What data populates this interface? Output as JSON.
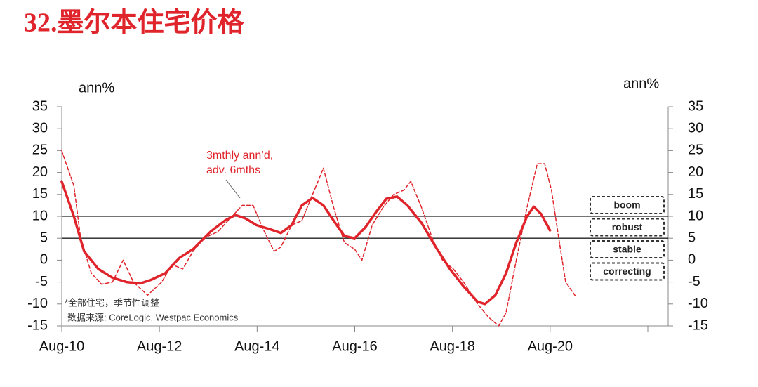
{
  "chart_data": {
    "type": "line",
    "title": "32.墨尔本住宅价格",
    "y_label": "ann%",
    "y2_label": "ann%",
    "annotation": [
      "3mthly ann’d,",
      "adv. 6mths"
    ],
    "notes": [
      "*全部住宅，季节性调整",
      "数据来源: CoreLogic, Westpac Economics"
    ],
    "regime_labels": [
      "boom",
      "robust",
      "stable",
      "correcting"
    ],
    "hlines": [
      10,
      5
    ],
    "xlim": [
      2010.583,
      2023.0
    ],
    "xticks": [
      {
        "value": 2010.583,
        "label": "Aug-10"
      },
      {
        "value": 2012.583,
        "label": "Aug-12"
      },
      {
        "value": 2014.583,
        "label": "Aug-14"
      },
      {
        "value": 2016.583,
        "label": "Aug-16"
      },
      {
        "value": 2018.583,
        "label": "Aug-18"
      },
      {
        "value": 2020.583,
        "label": "Aug-20"
      },
      {
        "value": 2022.583,
        "label": null
      }
    ],
    "ylim": [
      -15,
      35
    ],
    "yticks": [
      -15,
      -10,
      -5,
      0,
      5,
      10,
      15,
      20,
      25,
      30,
      35
    ],
    "y2lim": [
      -15,
      35
    ],
    "y2ticks": [
      -15,
      -10,
      -5,
      0,
      5,
      10,
      15,
      20,
      25,
      30,
      35
    ],
    "series": [
      {
        "color": "#e0242b",
        "style": "solid",
        "x": [
          2010.58,
          2010.83,
          2011.04,
          2011.33,
          2011.62,
          2011.91,
          2012.19,
          2012.41,
          2012.7,
          2012.99,
          2013.27,
          2013.63,
          2013.92,
          2014.14,
          2014.35,
          2014.57,
          2014.86,
          2015.07,
          2015.29,
          2015.5,
          2015.72,
          2015.94,
          2016.15,
          2016.37,
          2016.58,
          2016.8,
          2017.02,
          2017.23,
          2017.45,
          2017.66,
          2017.95,
          2018.24,
          2018.53,
          2018.81,
          2019.1,
          2019.25,
          2019.46,
          2019.68,
          2019.89,
          2020.11,
          2020.25,
          2020.4,
          2020.58
        ],
        "values": [
          18,
          10,
          2,
          -2,
          -4,
          -5,
          -5.3,
          -4.5,
          -3,
          0.5,
          2.5,
          6.5,
          9,
          10.3,
          9.5,
          8,
          7,
          6.2,
          8,
          12.5,
          14.2,
          12.5,
          9,
          5.5,
          5,
          7.5,
          11,
          14,
          14.5,
          12.5,
          8.5,
          3,
          -2,
          -6,
          -9.5,
          -10,
          -8,
          -3,
          4,
          10,
          12.2,
          10.5,
          6.8
        ]
      },
      {
        "color": "#e0242b",
        "style": "dashed",
        "x": [
          2010.58,
          2010.83,
          2010.97,
          2011.19,
          2011.4,
          2011.62,
          2011.84,
          2012.05,
          2012.34,
          2012.63,
          2012.84,
          2013.06,
          2013.27,
          2013.49,
          2013.78,
          2014.07,
          2014.28,
          2014.5,
          2014.71,
          2014.93,
          2015.07,
          2015.29,
          2015.5,
          2015.72,
          2015.94,
          2016.15,
          2016.37,
          2016.58,
          2016.73,
          2016.94,
          2017.16,
          2017.38,
          2017.59,
          2017.73,
          2017.95,
          2018.17,
          2018.38,
          2018.6,
          2018.81,
          2019.1,
          2019.32,
          2019.53,
          2019.68,
          2019.89,
          2020.11,
          2020.32,
          2020.47,
          2020.61,
          2020.76,
          2020.9,
          2021.12
        ],
        "values": [
          25,
          17,
          5,
          -3,
          -5.5,
          -5,
          0,
          -5,
          -8,
          -5,
          -1,
          -2,
          2,
          5,
          6.5,
          10,
          12.5,
          12.5,
          7,
          2,
          3,
          8,
          9,
          15,
          21,
          12,
          4,
          2.5,
          0,
          8,
          12,
          15,
          16,
          18,
          12,
          5,
          0,
          -2,
          -5,
          -10,
          -13,
          -15,
          -12,
          0,
          12,
          22,
          22,
          16,
          5,
          -5,
          -8.5
        ]
      }
    ]
  }
}
